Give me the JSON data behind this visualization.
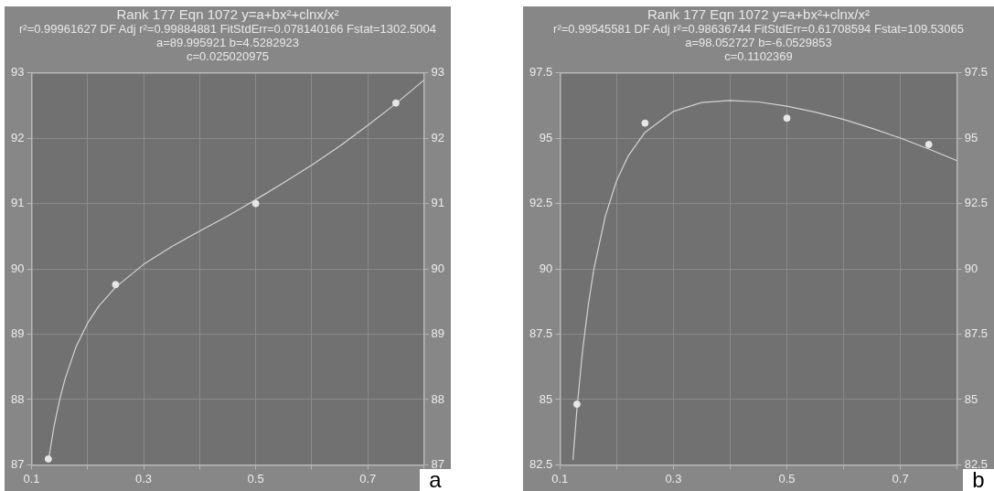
{
  "chart_data": [
    {
      "type": "scatter",
      "title": "Rank 177  Eqn 1072  y=a+bx²+clnx/x²",
      "subtitle": "r²=0.99961627  DF Adj r²=0.99884881  FitStdErr=0.078140166  Fstat=1302.5004",
      "annotations": [
        "a=89.995921 b=4.5282923",
        "c=0.025020975",
        "a"
      ],
      "series": [
        {
          "type": "scatter",
          "color": "#e6e6e6",
          "marker": "circle",
          "x": [
            0.13,
            0.25,
            0.5,
            0.75
          ],
          "values": [
            87.09,
            89.76,
            91.0,
            92.54
          ]
        },
        {
          "type": "line",
          "marker": "none",
          "color": "#d4d4d4",
          "x": [
            0.13,
            0.14,
            0.15,
            0.16,
            0.18,
            0.2,
            0.22,
            0.25,
            0.3,
            0.35,
            0.4,
            0.45,
            0.5,
            0.55,
            0.6,
            0.65,
            0.7,
            0.75,
            0.8
          ],
          "values": [
            87.05,
            87.58,
            87.99,
            88.32,
            88.82,
            89.17,
            89.43,
            89.72,
            90.07,
            90.34,
            90.58,
            90.81,
            91.06,
            91.32,
            91.59,
            91.88,
            92.2,
            92.53,
            92.89
          ]
        }
      ],
      "xlim": [
        0.1,
        0.8
      ],
      "xticks": [
        0.1,
        {
          "value": 0.2,
          "label": null
        },
        0.3,
        {
          "value": 0.4,
          "label": null
        },
        0.5,
        {
          "value": 0.6,
          "label": null
        },
        0.7,
        {
          "value": 0.8,
          "label": null
        }
      ],
      "ylim": [
        87,
        93
      ],
      "yticks": [
        87,
        88,
        89,
        90,
        91,
        92,
        93
      ],
      "y2lim": [
        87,
        93
      ],
      "y2ticks": [
        87,
        88,
        89,
        90,
        91,
        92,
        93
      ],
      "grid": true,
      "legend": false
    },
    {
      "type": "scatter",
      "title": "Rank 177  Eqn 1072  y=a+bx²+clnx/x²",
      "subtitle": "r²=0.99545581  DF Adj r²=0.98636744  FitStdErr=0.61708594  Fstat=109.53065",
      "annotations": [
        "a=98.052727 b=-6.0529853",
        "c=0.1102369",
        "b"
      ],
      "series": [
        {
          "type": "scatter",
          "color": "#e6e6e6",
          "marker": "circle",
          "x": [
            0.13,
            0.25,
            0.5,
            0.75
          ],
          "values": [
            84.82,
            95.58,
            95.77,
            94.76
          ]
        },
        {
          "type": "line",
          "marker": "none",
          "color": "#d4d4d4",
          "x": [
            0.123,
            0.13,
            0.14,
            0.15,
            0.16,
            0.18,
            0.2,
            0.22,
            0.25,
            0.3,
            0.35,
            0.4,
            0.45,
            0.5,
            0.55,
            0.6,
            0.65,
            0.7,
            0.75,
            0.8
          ],
          "values": [
            82.69,
            84.64,
            86.88,
            88.62,
            90.01,
            92.02,
            93.38,
            94.31,
            95.23,
            96.03,
            96.37,
            96.45,
            96.39,
            96.23,
            96.0,
            95.72,
            95.38,
            95.01,
            94.59,
            94.14
          ]
        }
      ],
      "xlim": [
        0.1,
        0.8
      ],
      "xticks": [
        0.1,
        {
          "value": 0.2,
          "label": null
        },
        0.3,
        {
          "value": 0.4,
          "label": null
        },
        0.5,
        {
          "value": 0.6,
          "label": null
        },
        0.7,
        {
          "value": 0.8,
          "label": null
        }
      ],
      "ylim": [
        82.5,
        97.5
      ],
      "yticks": [
        82.5,
        85,
        87.5,
        90,
        92.5,
        95,
        97.5
      ],
      "y2lim": [
        82.5,
        97.5
      ],
      "y2ticks": [
        82.5,
        85,
        87.5,
        90,
        92.5,
        95,
        97.5
      ],
      "grid": true,
      "legend": false
    }
  ]
}
